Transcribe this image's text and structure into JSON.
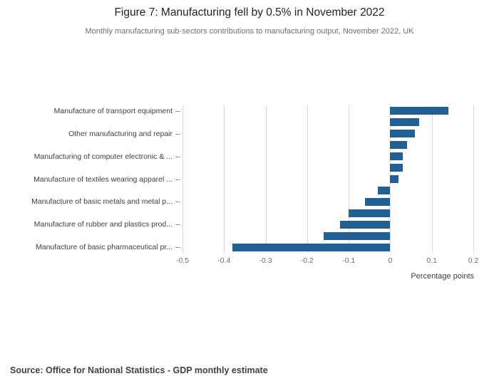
{
  "header": {
    "title": "Figure 7: Manufacturing fell by 0.5% in November 2022",
    "subtitle": "Monthly manufacturing sub-sectors contributions to manufacturing output, November 2022, UK"
  },
  "source": {
    "text": "Source: Office for National Statistics - GDP monthly estimate"
  },
  "colors": {
    "bar": "#206095",
    "grid": "#d9d9d9",
    "tick_mark": "#9b9b9b",
    "text": "#414042",
    "muted_text": "#707071",
    "title_text": "#222222"
  },
  "chart_data": {
    "type": "bar",
    "orientation": "horizontal",
    "title": "Figure 7: Manufacturing fell by 0.5% in November 2022",
    "subtitle": "Monthly manufacturing sub-sectors contributions to manufacturing output, November 2022, UK",
    "xlabel": "Percentage points",
    "xlim": [
      -0.5,
      0.2
    ],
    "xticks": [
      -0.5,
      -0.4,
      -0.3,
      -0.2,
      -0.1,
      0,
      0.1,
      0.2
    ],
    "grid": true,
    "legend": "none",
    "ylabel_shown_every": 2,
    "bars": [
      {
        "label": "Manufacture of transport equipment",
        "value": 0.14
      },
      {
        "label": "",
        "value": 0.07
      },
      {
        "label": "Other manufacturing and repair",
        "value": 0.06
      },
      {
        "label": "",
        "value": 0.04
      },
      {
        "label": "Manufacturing of computer electronic & ...",
        "value": 0.03
      },
      {
        "label": "",
        "value": 0.03
      },
      {
        "label": "Manufacture of textiles wearing apparel ...",
        "value": 0.02
      },
      {
        "label": "",
        "value": -0.03
      },
      {
        "label": "Manufacture of basic metals and metal p...",
        "value": -0.06
      },
      {
        "label": "",
        "value": -0.1
      },
      {
        "label": "Manufacture of rubber and plastics prod...",
        "value": -0.12
      },
      {
        "label": "",
        "value": -0.16
      },
      {
        "label": "Manufacture of basic pharmaceutical pr...",
        "value": -0.38
      }
    ]
  }
}
